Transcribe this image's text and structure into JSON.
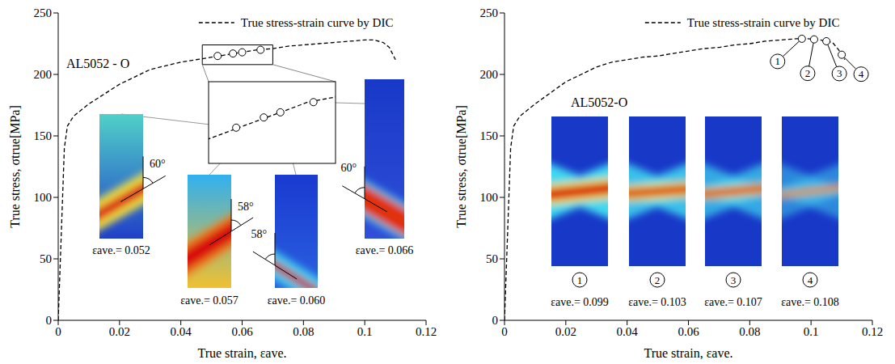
{
  "chart_data": [
    {
      "type": "line",
      "title": "AL5052 - O",
      "x_label": "True strain, εave.",
      "y_label": "True stress, σtrue[MPa]",
      "series": [
        {
          "name": "True stress-strain curve by DIC",
          "color": "#000000",
          "line_style": "dashed",
          "x": [
            0,
            0.001,
            0.002,
            0.003,
            0.005,
            0.008,
            0.01,
            0.015,
            0.02,
            0.025,
            0.03,
            0.035,
            0.04,
            0.045,
            0.05,
            0.055,
            0.06,
            0.065,
            0.07,
            0.075,
            0.08,
            0.085,
            0.09,
            0.095,
            0.1,
            0.103,
            0.106,
            0.108,
            0.11
          ],
          "values": [
            0,
            70,
            140,
            158,
            166,
            172,
            176,
            184,
            192,
            198,
            204,
            207,
            210,
            212,
            214,
            216,
            218,
            220,
            221,
            223,
            224,
            225,
            226,
            227,
            228,
            228,
            226,
            222,
            212
          ]
        }
      ],
      "xlim": [
        0,
        0.12
      ],
      "xticks": [
        0,
        0.02,
        0.04,
        0.06,
        0.08,
        0.1,
        0.12
      ],
      "ylim": [
        0,
        250
      ],
      "yticks": [
        0,
        50,
        100,
        150,
        200,
        250
      ],
      "legend": "upper right",
      "zoom": {
        "xlim": [
          0.047,
          0.07
        ],
        "ylim": [
          208,
          224
        ]
      },
      "insets": [
        {
          "x": 0.052,
          "y": 215,
          "strain": {
            "value": 0.052,
            "label": "εave.= 0.052"
          },
          "angle": {
            "value": 60,
            "label": "60°"
          }
        },
        {
          "x": 0.057,
          "y": 217,
          "strain": {
            "value": 0.057,
            "label": "εave.= 0.057"
          },
          "angle": {
            "value": 58,
            "label": "58°"
          }
        },
        {
          "x": 0.06,
          "y": 218,
          "strain": {
            "value": 0.06,
            "label": "εave.= 0.060"
          },
          "angle": {
            "value": 58,
            "label": "58°"
          }
        },
        {
          "x": 0.066,
          "y": 220,
          "strain": {
            "value": 0.066,
            "label": "εave.= 0.066"
          },
          "angle": {
            "value": 60,
            "label": "60°"
          }
        }
      ]
    },
    {
      "type": "line",
      "title": "AL5052-O",
      "x_label": "True strain, εave.",
      "y_label": "True stress, σtrue[MPa]",
      "series": [
        {
          "name": "True stress-strain curve by DIC",
          "color": "#000000",
          "line_style": "dashed",
          "x": [
            0,
            0.001,
            0.002,
            0.003,
            0.005,
            0.008,
            0.01,
            0.015,
            0.02,
            0.025,
            0.03,
            0.035,
            0.04,
            0.045,
            0.05,
            0.055,
            0.06,
            0.065,
            0.07,
            0.075,
            0.08,
            0.085,
            0.09,
            0.095,
            0.099,
            0.103,
            0.107,
            0.109,
            0.111
          ],
          "values": [
            0,
            70,
            140,
            158,
            166,
            172,
            176,
            185,
            194,
            200,
            206,
            210,
            212,
            214,
            215,
            217,
            219,
            221,
            222,
            224,
            225,
            227,
            228,
            229,
            229,
            228,
            226,
            220,
            212
          ]
        }
      ],
      "xlim": [
        0,
        0.12
      ],
      "xticks": [
        0,
        0.02,
        0.04,
        0.06,
        0.08,
        0.1,
        0.12
      ],
      "ylim": [
        0,
        250
      ],
      "yticks": [
        0,
        50,
        100,
        150,
        200,
        250
      ],
      "legend": "upper right",
      "insets": [
        {
          "x": 0.097,
          "y": 229,
          "marker_label": "1",
          "strain": {
            "value": 0.099,
            "label": "εave.= 0.099"
          }
        },
        {
          "x": 0.101,
          "y": 228.5,
          "marker_label": "2",
          "strain": {
            "value": 0.103,
            "label": "εave.= 0.103"
          }
        },
        {
          "x": 0.105,
          "y": 227,
          "marker_label": "3",
          "strain": {
            "value": 0.107,
            "label": "εave.= 0.107"
          }
        },
        {
          "x": 0.11,
          "y": 216,
          "marker_label": "4",
          "strain": {
            "value": 0.108,
            "label": "εave.= 0.108"
          }
        }
      ]
    }
  ]
}
